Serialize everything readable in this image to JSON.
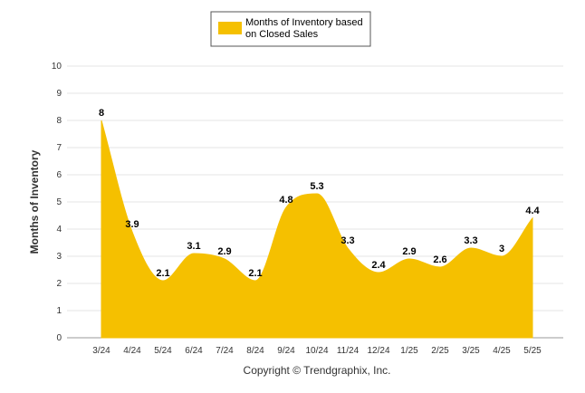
{
  "chart_data": {
    "type": "area",
    "categories": [
      "3/24",
      "4/24",
      "5/24",
      "6/24",
      "7/24",
      "8/24",
      "9/24",
      "10/24",
      "11/24",
      "12/24",
      "1/25",
      "2/25",
      "3/25",
      "4/25",
      "5/25"
    ],
    "series": [
      {
        "name": "Months of Inventory based on Closed Sales",
        "values": [
          8,
          3.9,
          2.1,
          3.1,
          2.9,
          2.1,
          4.8,
          5.3,
          3.3,
          2.4,
          2.9,
          2.6,
          3.3,
          3,
          4.4
        ],
        "color": "#F5C000"
      }
    ],
    "data_labels": [
      "8",
      "3.9",
      "2.1",
      "3.1",
      "2.9",
      "2.1",
      "4.8",
      "5.3",
      "3.3",
      "2.4",
      "2.9",
      "2.6",
      "3.3",
      "3",
      "4.4"
    ],
    "legend_lines": [
      "Months of Inventory based",
      "on Closed Sales"
    ],
    "ylabel": "Months of Inventory",
    "ylim": [
      0,
      10
    ],
    "yticks": [
      0,
      1,
      2,
      3,
      4,
      5,
      6,
      7,
      8,
      9,
      10
    ],
    "grid": true,
    "legend_position": "top-center"
  },
  "footer": "Copyright © Trendgraphix, Inc."
}
